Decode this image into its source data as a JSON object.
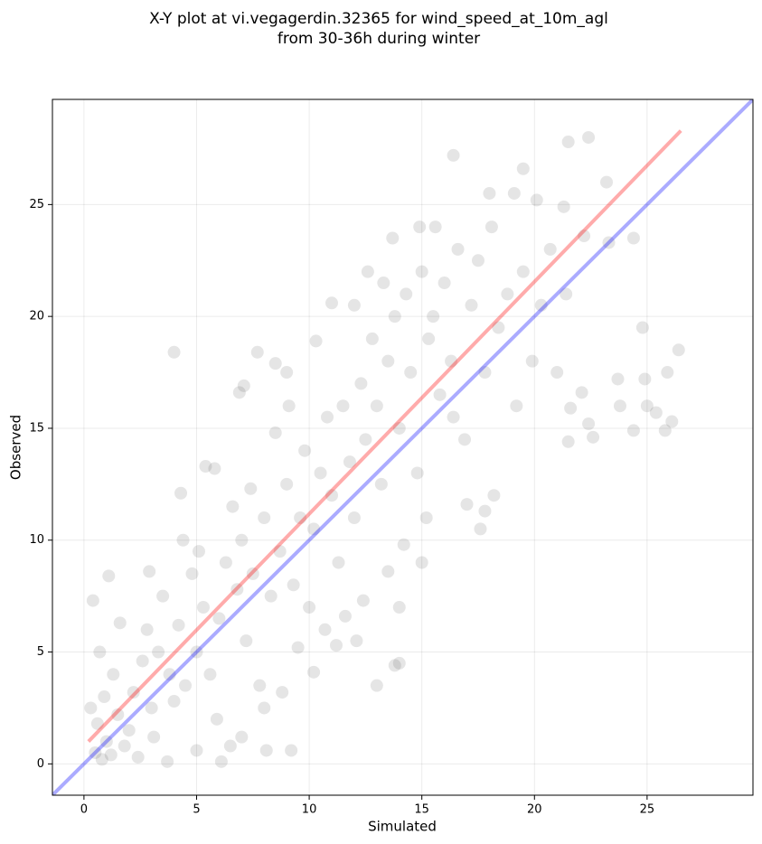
{
  "chart_data": {
    "type": "scatter",
    "title": "X-Y plot at vi.vegagerdin.32365 for wind_speed_at_10m_agl",
    "subtitle": "from 30-36h during winter",
    "xlabel": "Simulated",
    "ylabel": "Observed",
    "color": "#333333",
    "xlim": [
      -1.4,
      29.7
    ],
    "ylim": [
      -1.4,
      29.7
    ],
    "xticks": [
      0,
      5,
      10,
      15,
      20,
      25
    ],
    "yticks": [
      0,
      5,
      10,
      15,
      20,
      25
    ],
    "grid": true,
    "x": [
      4,
      22.4,
      21.5,
      16.4,
      23.2,
      19.5,
      26.4,
      25.9,
      26.1,
      25.8,
      24.4,
      25.0,
      25.4,
      24.9,
      24.8,
      24.4,
      23.8,
      23.7,
      22.6,
      22.4,
      22.1,
      21.5,
      21.6,
      23.3,
      22.2,
      21.3,
      20.1,
      18.0,
      19.1,
      13.0,
      14.0,
      13.8,
      9.2,
      8.1,
      6.1,
      3.7,
      0.4,
      1.1,
      5.4,
      5.8,
      6.9,
      7.1,
      7.7,
      8.5,
      9.0,
      13.7,
      17.6,
      18.2,
      17.0,
      17.8,
      15.0,
      14.0,
      12.1,
      10.2,
      11.2,
      0.5,
      0.8,
      1.0,
      1.2,
      0.6,
      1.5,
      0.9,
      2.0,
      1.3,
      2.2,
      2.6,
      3.0,
      3.3,
      2.8,
      3.8,
      4.2,
      4.5,
      3.5,
      5.0,
      5.3,
      4.8,
      5.6,
      6.0,
      6.3,
      5.9,
      6.8,
      7.2,
      7.0,
      7.5,
      8.0,
      8.3,
      7.8,
      8.7,
      9.0,
      9.3,
      9.6,
      9.8,
      10.2,
      10.5,
      10.0,
      10.8,
      11.0,
      11.3,
      11.5,
      11.8,
      12.0,
      12.3,
      12.5,
      12.8,
      13.0,
      13.2,
      13.5,
      13.8,
      14.0,
      14.3,
      14.5,
      14.8,
      15.0,
      15.3,
      15.6,
      15.8,
      16.0,
      16.3,
      16.6,
      16.9,
      17.2,
      17.5,
      17.8,
      18.1,
      18.4,
      18.8,
      19.2,
      19.5,
      19.9,
      20.3,
      20.7,
      21.0,
      21.4,
      0.3,
      1.8,
      2.4,
      3.1,
      4.0,
      0.7,
      1.6,
      2.9,
      4.4,
      4.3,
      5.1,
      6.6,
      7.4,
      8.5,
      9.1,
      10.3,
      11.0,
      12.0,
      12.6,
      13.3,
      14.9,
      15.5,
      16.4,
      15.2,
      14.2,
      13.5,
      12.4,
      11.6,
      10.7,
      9.5,
      8.8,
      8.0,
      7.0,
      6.5,
      5.0
    ],
    "values": [
      18.4,
      28,
      27.8,
      27.2,
      26,
      26.6,
      18.5,
      17.5,
      15.3,
      14.9,
      14.9,
      16.0,
      15.7,
      17.2,
      19.5,
      23.5,
      16.0,
      17.2,
      14.6,
      15.2,
      16.6,
      14.4,
      15.9,
      23.3,
      23.6,
      24.9,
      25.2,
      25.5,
      25.5,
      3.5,
      4.5,
      4.4,
      0.6,
      0.6,
      0.1,
      0.1,
      7.3,
      8.4,
      13.3,
      13.2,
      16.6,
      16.9,
      18.4,
      17.9,
      17.5,
      23.5,
      10.5,
      12.0,
      11.6,
      11.3,
      9.0,
      7.0,
      5.5,
      4.1,
      5.3,
      0.5,
      0.2,
      1.0,
      0.4,
      1.8,
      2.2,
      3.0,
      1.5,
      4.0,
      3.2,
      4.6,
      2.5,
      5.0,
      6.0,
      4.0,
      6.2,
      3.5,
      7.5,
      5.0,
      7.0,
      8.5,
      4.0,
      6.5,
      9.0,
      2.0,
      7.8,
      5.5,
      10.0,
      8.5,
      11.0,
      7.5,
      3.5,
      9.5,
      12.5,
      8.0,
      11.0,
      14.0,
      10.5,
      13.0,
      7.0,
      15.5,
      12.0,
      9.0,
      16.0,
      13.5,
      11.0,
      17.0,
      14.5,
      19.0,
      16.0,
      12.5,
      18.0,
      20.0,
      15.0,
      21.0,
      17.5,
      13.0,
      22.0,
      19.0,
      24.0,
      16.5,
      21.5,
      18.0,
      23.0,
      14.5,
      20.5,
      22.5,
      17.5,
      24.0,
      19.5,
      21.0,
      16.0,
      22.0,
      18.0,
      20.5,
      23.0,
      17.5,
      21.0,
      2.5,
      0.8,
      0.3,
      1.2,
      2.8,
      5.0,
      6.3,
      8.6,
      10.0,
      12.1,
      9.5,
      11.5,
      12.3,
      14.8,
      16.0,
      18.9,
      20.6,
      20.5,
      22.0,
      21.5,
      24.0,
      20.0,
      15.5,
      11.0,
      9.8,
      8.6,
      7.3,
      6.6,
      6.0,
      5.2,
      3.2,
      2.5,
      1.2,
      0.8,
      0.6
    ],
    "lines": [
      {
        "color": "#ff0000",
        "x": [
          0.2,
          26.5
        ],
        "y": [
          1.0,
          28.3
        ]
      },
      {
        "color": "#0000ff",
        "x": [
          -1.4,
          29.7
        ],
        "y": [
          -1.4,
          29.7
        ]
      }
    ]
  }
}
